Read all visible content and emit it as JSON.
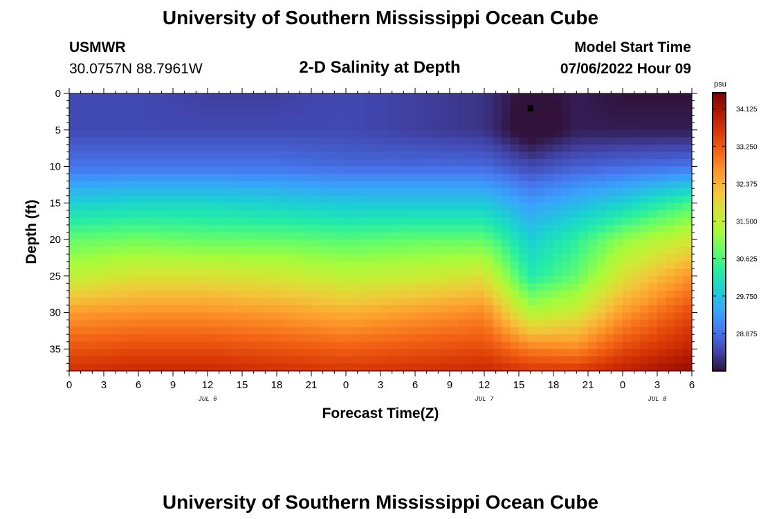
{
  "titles": {
    "main": "University of Southern Mississippi Ocean Cube",
    "bottom_repeat": "University of Southern Mississippi Ocean Cube"
  },
  "station": {
    "name": "USMWR",
    "coords": "30.0757N  88.7961W"
  },
  "model": {
    "label": "Model Start Time",
    "value": "07/06/2022 Hour 09"
  },
  "chart_data": {
    "type": "heatmap",
    "title": "2-D Salinity at Depth",
    "xlabel": "Forecast Time(Z)",
    "ylabel": "Depth (ft)",
    "x_ticks": [
      "0",
      "3",
      "6",
      "9",
      "12",
      "15",
      "18",
      "21",
      "0",
      "3",
      "6",
      "9",
      "12",
      "15",
      "18",
      "21",
      "0",
      "3",
      "6"
    ],
    "x_range_hours": [
      0,
      54
    ],
    "day_labels": [
      {
        "label": "JUL 6",
        "hour": 12
      },
      {
        "label": "JUL 7",
        "hour": 36
      },
      {
        "label": "JUL 8",
        "hour": 51
      }
    ],
    "y_ticks": [
      0,
      5,
      10,
      15,
      20,
      25,
      30,
      35
    ],
    "ylim": [
      0,
      38
    ],
    "y_inverted": true,
    "colorbar": {
      "unit": "psu",
      "ticks": [
        "34.125",
        "33.250",
        "32.375",
        "31.500",
        "30.625",
        "29.750",
        "28.875"
      ],
      "range": [
        28.0,
        34.5
      ]
    },
    "columns_hours": [
      0,
      6,
      12,
      18,
      24,
      30,
      36,
      40,
      44,
      48,
      54
    ],
    "depths_ft": [
      0,
      5,
      10,
      15,
      20,
      25,
      30,
      35,
      38
    ],
    "salinity_psu": [
      [
        28.5,
        28.5,
        28.9,
        29.9,
        30.8,
        31.5,
        32.6,
        33.3,
        33.7
      ],
      [
        28.5,
        28.5,
        28.9,
        30.0,
        30.9,
        31.8,
        32.7,
        33.4,
        33.8
      ],
      [
        28.4,
        28.5,
        28.9,
        30.0,
        30.8,
        31.8,
        32.7,
        33.4,
        33.8
      ],
      [
        28.4,
        28.5,
        28.9,
        29.9,
        30.8,
        31.7,
        32.6,
        33.3,
        33.7
      ],
      [
        28.5,
        28.5,
        28.8,
        29.8,
        30.7,
        31.5,
        32.4,
        33.2,
        33.6
      ],
      [
        28.4,
        28.4,
        28.8,
        29.8,
        30.8,
        31.6,
        32.6,
        33.3,
        33.7
      ],
      [
        28.3,
        28.3,
        28.8,
        29.8,
        30.8,
        31.8,
        32.8,
        33.4,
        33.8
      ],
      [
        27.9,
        27.8,
        28.5,
        29.3,
        29.9,
        30.3,
        31.4,
        32.9,
        33.6
      ],
      [
        28.1,
        28.1,
        28.7,
        29.6,
        30.4,
        30.8,
        31.7,
        32.8,
        33.6
      ],
      [
        28.0,
        28.1,
        28.8,
        29.9,
        31.1,
        31.8,
        32.6,
        33.4,
        33.9
      ],
      [
        28.0,
        28.1,
        28.9,
        30.6,
        31.7,
        32.7,
        33.4,
        33.9,
        34.3
      ]
    ],
    "marker": {
      "hour": 40,
      "depth_ft": 2
    }
  }
}
